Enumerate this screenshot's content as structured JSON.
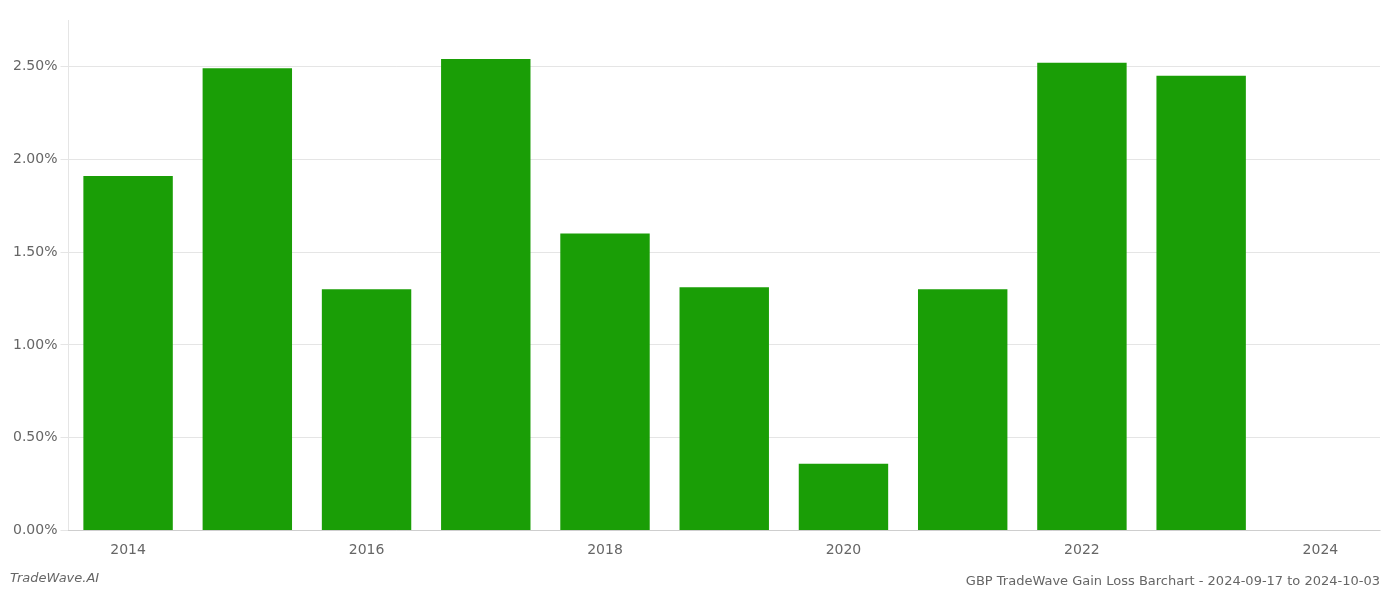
{
  "chart_data": {
    "type": "bar",
    "title": "GBP TradeWave Gain Loss Barchart - 2024-09-17 to 2024-10-03",
    "annotations": [
      "TradeWave.AI"
    ],
    "categories": [
      "2014",
      null,
      "2016",
      null,
      "2018",
      null,
      "2020",
      null,
      "2022",
      null,
      "2024"
    ],
    "values": [
      0.0191,
      0.0249,
      0.013,
      0.0254,
      0.016,
      0.0131,
      0.0036,
      0.013,
      0.0252,
      0.0245,
      null
    ],
    "color": "#1a9e06",
    "ylim": [
      0,
      0.0275
    ],
    "yticks": [
      {
        "value": 0.0,
        "label": "0.00%"
      },
      {
        "value": 0.005,
        "label": "0.50%"
      },
      {
        "value": 0.01,
        "label": "1.00%"
      },
      {
        "value": 0.015,
        "label": "1.50%"
      },
      {
        "value": 0.02,
        "label": "2.00%"
      },
      {
        "value": 0.025,
        "label": "2.50%"
      }
    ],
    "grid": true
  }
}
